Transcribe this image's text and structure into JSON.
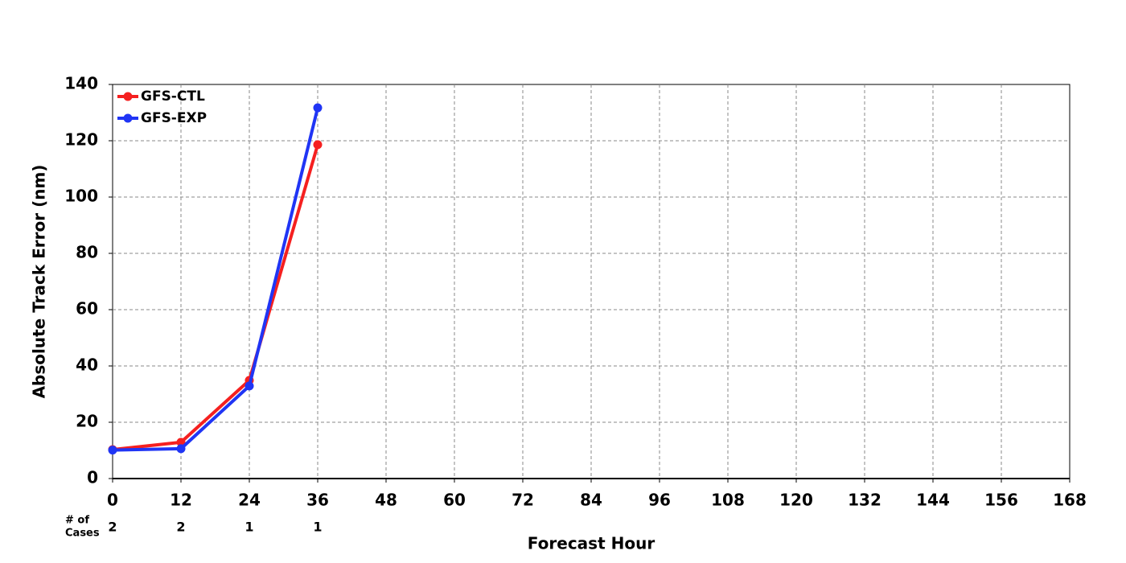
{
  "chart_data": {
    "type": "line",
    "xlabel": "Forecast Hour",
    "ylabel": "Absolute Track Error (nm)",
    "x": [
      0,
      12,
      24,
      36
    ],
    "series": [
      {
        "name": "GFS-CTL",
        "color": "#f52020",
        "values": [
          10.3,
          12.9,
          34.9,
          118.6
        ]
      },
      {
        "name": "GFS-EXP",
        "color": "#2035f5",
        "values": [
          10.1,
          10.6,
          32.9,
          131.7
        ]
      }
    ],
    "xlim": [
      0,
      168
    ],
    "xticks": [
      0,
      12,
      24,
      36,
      48,
      60,
      72,
      84,
      96,
      108,
      120,
      132,
      144,
      156,
      168
    ],
    "ylim": [
      0,
      140
    ],
    "yticks": [
      0,
      20,
      40,
      60,
      80,
      100,
      120,
      140
    ],
    "grid": true,
    "legend": "upper left",
    "cases_label": [
      "# of",
      "Cases"
    ],
    "cases": [
      2,
      2,
      1,
      1
    ]
  }
}
